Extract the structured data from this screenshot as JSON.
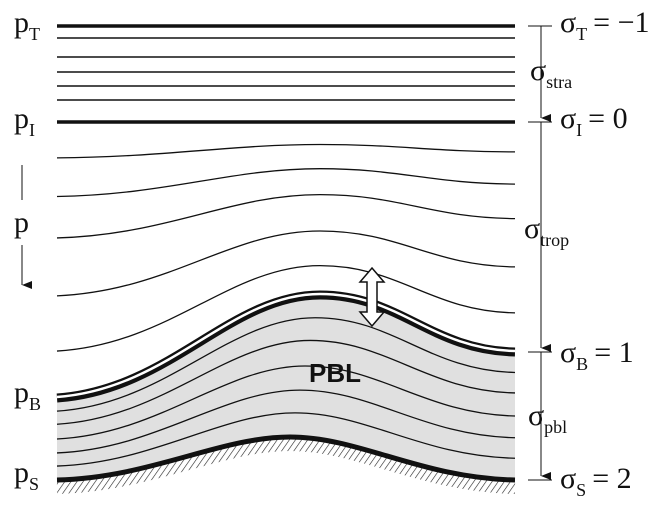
{
  "left_labels": [
    {
      "symbol": "p",
      "sub": "T"
    },
    {
      "symbol": "p",
      "sub": "I"
    },
    {
      "symbol": "p"
    },
    {
      "symbol": "p",
      "sub": "B"
    },
    {
      "symbol": "p",
      "sub": "S"
    }
  ],
  "right_labels": [
    {
      "symbol": "σ",
      "sub": "T",
      "value": "= −1"
    },
    {
      "symbol": "σ",
      "sub": "stra"
    },
    {
      "symbol": "σ",
      "sub": "I",
      "value": "= 0"
    },
    {
      "symbol": "σ",
      "sub": "trop"
    },
    {
      "symbol": "σ",
      "sub": "B",
      "value": "= 1"
    },
    {
      "symbol": "σ",
      "sub": "pbl"
    },
    {
      "symbol": "σ",
      "sub": "S",
      "value": "= 2"
    }
  ],
  "region_label": "PBL"
}
